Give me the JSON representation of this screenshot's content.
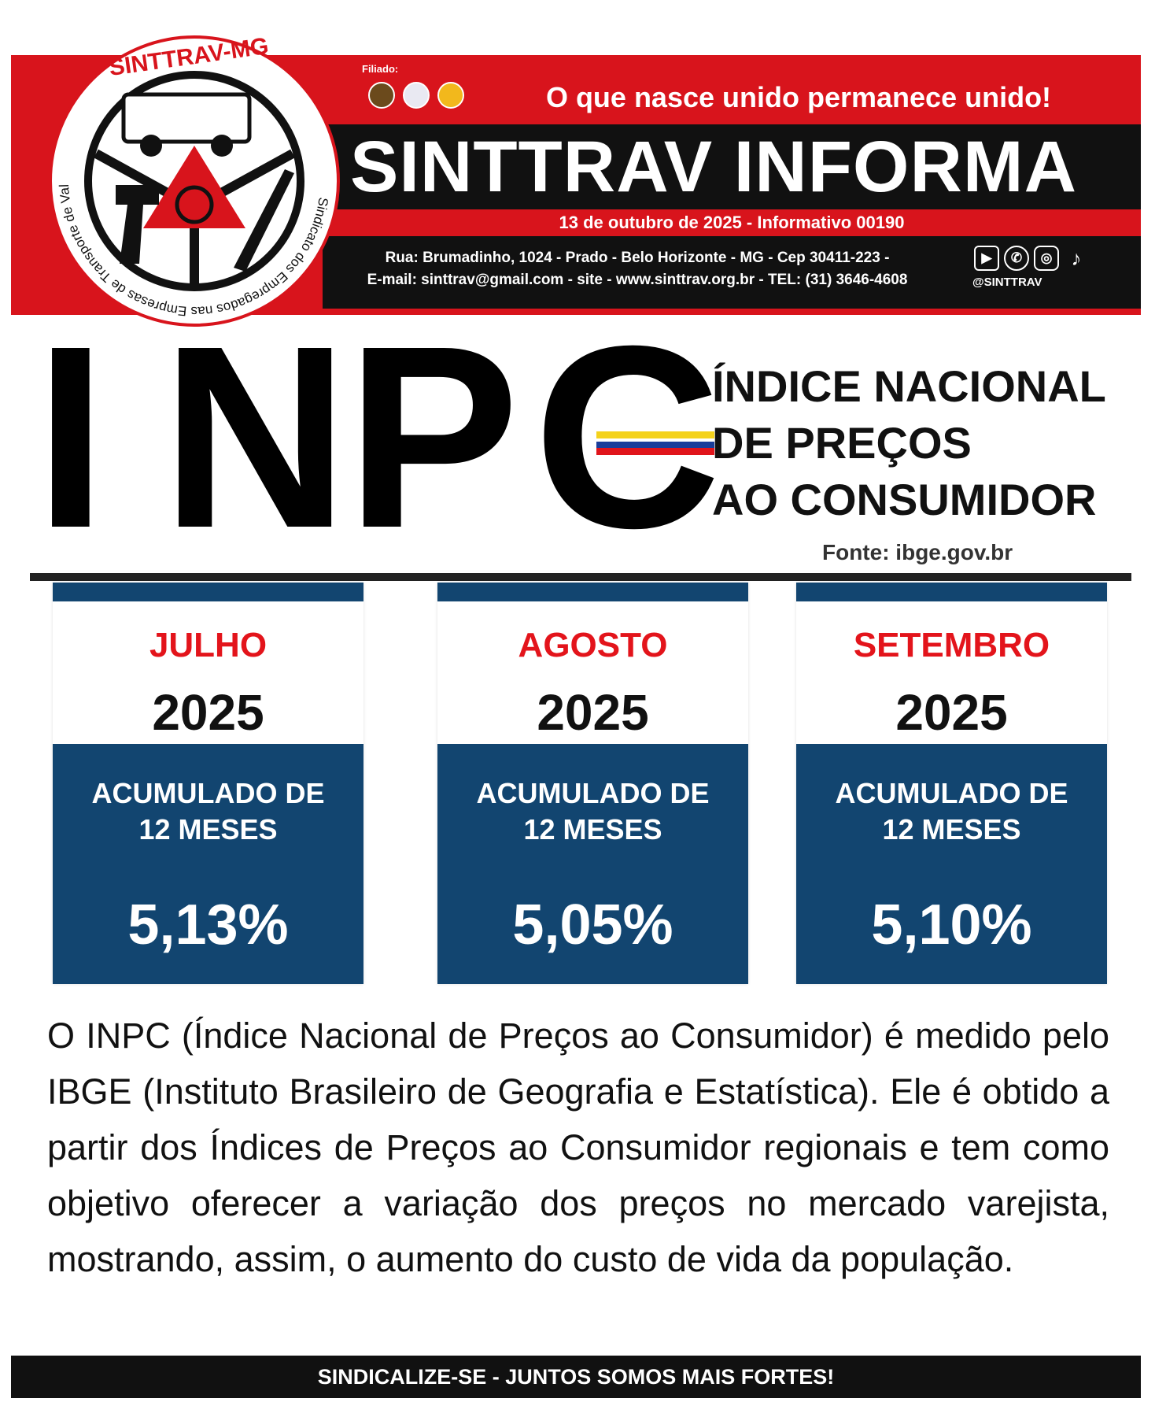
{
  "header": {
    "filiado_label": "Filiado:",
    "slogan": "O que nasce unido permanece unido!",
    "title": "SINTTRAV INFORMA",
    "date_line": "13 de outubro de  2025 - Informativo 00190",
    "address_line": "Rua: Brumadinho, 1024 - Prado - Belo Horizonte - MG - Cep 30411-223 -",
    "contact_line": "E-mail: sinttrav@gmail.com - site - www.sinttrav.org.br - TEL: (31) 3646-4608",
    "social_icons": [
      "youtube-icon",
      "whatsapp-icon",
      "instagram-icon",
      "tiktok-icon"
    ],
    "social_handle": "@SINTTRAV"
  },
  "logo": {
    "name": "SINTTRAV-MG",
    "ring_text": "Sindicato dos Empregados nas Empresas de Transporte de Valores do Estado de Minas Gerais"
  },
  "inpc": {
    "letters": [
      "I",
      "N",
      "P",
      "C"
    ],
    "subtitle_lines": [
      "ÍNDICE NACIONAL",
      "DE PREÇOS",
      "AO CONSUMIDOR"
    ],
    "source": "Fonte: ibge.gov.br"
  },
  "cards": [
    {
      "month": "JULHO",
      "year": "2025",
      "label_line1": "ACUMULADO DE",
      "label_line2": "12 MESES",
      "value": "5,13%"
    },
    {
      "month": "AGOSTO",
      "year": "2025",
      "label_line1": "ACUMULADO DE",
      "label_line2": "12 MESES",
      "value": "5,05%"
    },
    {
      "month": "SETEMBRO",
      "year": "2025",
      "label_line1": "ACUMULADO DE",
      "label_line2": "12 MESES",
      "value": "5,10%"
    }
  ],
  "paragraph": "O INPC (Índice Nacional de Preços ao Consumidor) é medido pelo IBGE (Instituto Brasileiro de Geografia e Estatística). Ele é obtido a partir dos Índices de Preços ao Consumidor regionais e tem como objetivo oferecer a variação dos preços no mercado varejista, mostrando, assim, o aumento do custo de vida da população.",
  "footer": "SINDICALIZE-SE - JUNTOS SOMOS MAIS FORTES!",
  "colors": {
    "brand_red": "#d8141c",
    "card_blue": "#124570",
    "month_red": "#e3141b",
    "black": "#111111"
  }
}
